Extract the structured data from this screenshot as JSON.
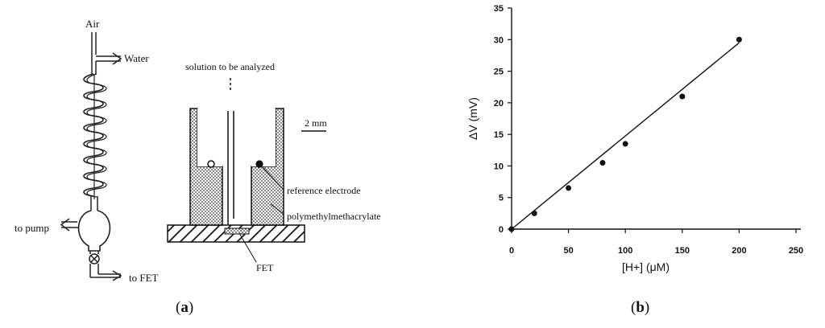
{
  "panel_a": {
    "labels": {
      "air": "Air",
      "water": "Water",
      "to_pump": "to pump",
      "to_fet": "to FET",
      "solution": "solution to be analyzed",
      "scale": "2 mm",
      "reference_electrode": "reference electrode",
      "polymer": "polymethylmethacrylate",
      "fet": "FET"
    },
    "caption_letter": "a"
  },
  "panel_b": {
    "caption_letter": "b"
  },
  "chart_data": {
    "type": "scatter",
    "xlabel": "[H+] (μM)",
    "ylabel": "ΔV (mV)",
    "xlim": [
      0,
      250
    ],
    "ylim": [
      0,
      35
    ],
    "xticks": [
      0,
      50,
      100,
      150,
      200,
      250
    ],
    "yticks": [
      0,
      5,
      10,
      15,
      20,
      25,
      30,
      35
    ],
    "grid": false,
    "series": [
      {
        "points": [
          {
            "x": 0,
            "y": 0
          },
          {
            "x": 20,
            "y": 2.5
          },
          {
            "x": 50,
            "y": 6.5
          },
          {
            "x": 80,
            "y": 10.5
          },
          {
            "x": 100,
            "y": 13.5
          },
          {
            "x": 150,
            "y": 21
          },
          {
            "x": 200,
            "y": 30
          }
        ]
      }
    ],
    "fit_line": {
      "x": [
        0,
        200
      ],
      "y": [
        0,
        29.5
      ]
    }
  }
}
